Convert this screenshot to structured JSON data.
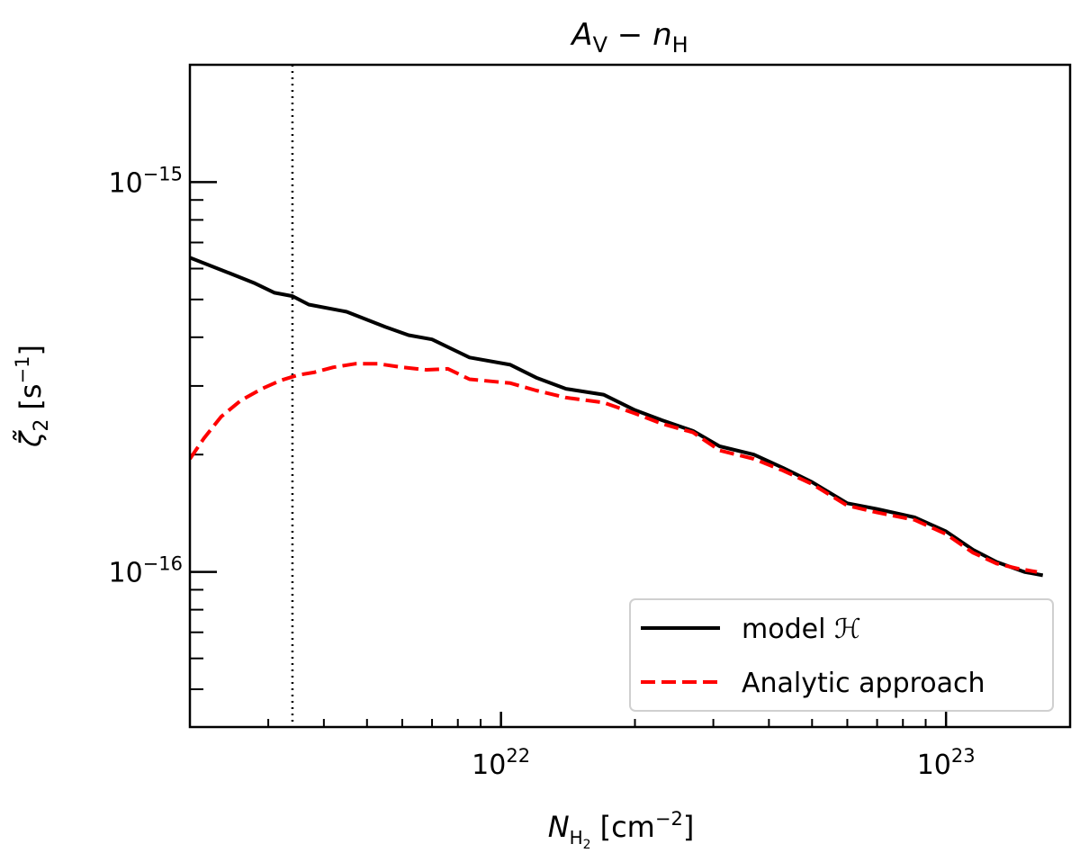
{
  "chart_data": {
    "type": "line",
    "title": {
      "main": "A",
      "main_sub": "V",
      "sep": " − ",
      "second": "n",
      "second_sub": "H"
    },
    "xlabel": {
      "main": "N",
      "sub": "H",
      "subsub": "2",
      "unit": "[cm",
      "unit_exp": "−2",
      "unit_close": "]"
    },
    "ylabel": {
      "main": "ζ̃",
      "sub": "2",
      "unit": "[s",
      "unit_exp": "−1",
      "unit_close": "]"
    },
    "xscale": "log",
    "yscale": "log",
    "xlim": [
      2e+21,
      1.9e+23
    ],
    "ylim": [
      4e-17,
      2e-15
    ],
    "vline_x": 3.4e+21,
    "xticks_major": [
      {
        "value": 1e+22,
        "base": "10",
        "exp": "22"
      },
      {
        "value": 1e+23,
        "base": "10",
        "exp": "23"
      }
    ],
    "yticks_major": [
      {
        "value": 1e-15,
        "base": "10",
        "exp": "−15"
      },
      {
        "value": 1e-16,
        "base": "10",
        "exp": "−16"
      }
    ],
    "series": [
      {
        "name": "model ℋ",
        "color": "#000000",
        "dash": "solid",
        "x": [
          2e+21,
          2.4e+21,
          2.8e+21,
          3.1e+21,
          3.4e+21,
          3.7e+21,
          4.5e+21,
          5.5e+21,
          6.2e+21,
          7e+21,
          8.5e+21,
          1.05e+22,
          1.2e+22,
          1.4e+22,
          1.7e+22,
          2e+22,
          2.3e+22,
          2.7e+22,
          3.1e+22,
          3.7e+22,
          4.3e+22,
          5e+22,
          6e+22,
          7e+22,
          8.5e+22,
          1e+23,
          1.15e+23,
          1.3e+23,
          1.5e+23,
          1.65e+23
        ],
        "y": [
          6.4e-16,
          5.9e-16,
          5.5e-16,
          5.2e-16,
          5.1e-16,
          4.85e-16,
          4.65e-16,
          4.25e-16,
          4.05e-16,
          3.95e-16,
          3.55e-16,
          3.4e-16,
          3.15e-16,
          2.95e-16,
          2.85e-16,
          2.6e-16,
          2.45e-16,
          2.3e-16,
          2.1e-16,
          2e-16,
          1.85e-16,
          1.7e-16,
          1.5e-16,
          1.45e-16,
          1.38e-16,
          1.27e-16,
          1.14e-16,
          1.06e-16,
          1e-16,
          9.8e-17
        ]
      },
      {
        "name": "Analytic approach",
        "color": "#ff0000",
        "dash": "dashed",
        "x": [
          2e+21,
          2.15e+21,
          2.35e+21,
          2.6e+21,
          2.9e+21,
          3.2e+21,
          3.5e+21,
          3.8e+21,
          4.2e+21,
          4.7e+21,
          5.3e+21,
          6e+21,
          6.8e+21,
          7.6e+21,
          8.5e+21,
          1.05e+22,
          1.2e+22,
          1.4e+22,
          1.7e+22,
          2e+22,
          2.3e+22,
          2.7e+22,
          3.1e+22,
          3.7e+22,
          4.3e+22,
          5e+22,
          6e+22,
          7e+22,
          8.5e+22,
          1e+23,
          1.15e+23,
          1.3e+23,
          1.45e+23,
          1.6e+23
        ],
        "y": [
          1.95e-16,
          2.2e-16,
          2.5e-16,
          2.75e-16,
          2.95e-16,
          3.1e-16,
          3.2e-16,
          3.25e-16,
          3.35e-16,
          3.42e-16,
          3.42e-16,
          3.35e-16,
          3.3e-16,
          3.32e-16,
          3.12e-16,
          3.05e-16,
          2.92e-16,
          2.8e-16,
          2.72e-16,
          2.55e-16,
          2.4e-16,
          2.28e-16,
          2.05e-16,
          1.95e-16,
          1.82e-16,
          1.68e-16,
          1.48e-16,
          1.42e-16,
          1.36e-16,
          1.25e-16,
          1.12e-16,
          1.05e-16,
          1.02e-16,
          1e-16
        ]
      }
    ],
    "legend": {
      "position": "lower-right"
    }
  }
}
